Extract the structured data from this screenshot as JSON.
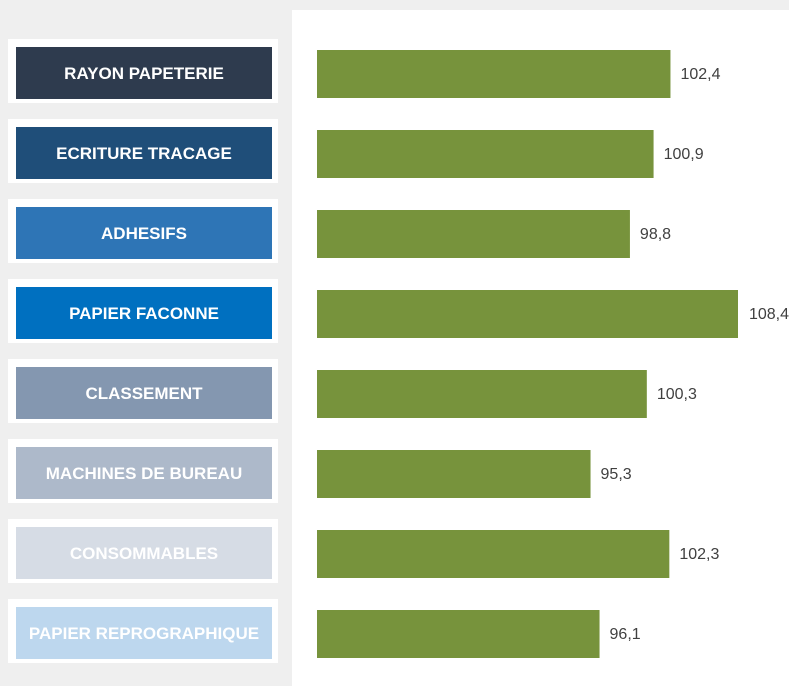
{
  "chart_data": {
    "type": "bar",
    "orientation": "horizontal",
    "categories": [
      "RAYON PAPETERIE",
      "ECRITURE TRACAGE",
      "ADHESIFS",
      "PAPIER FACONNE",
      "CLASSEMENT",
      "MACHINES DE BUREAU",
      "CONSOMMABLES",
      "PAPIER REPROGRAPHIQUE"
    ],
    "values": [
      102.4,
      100.9,
      98.8,
      108.4,
      100.3,
      95.3,
      102.3,
      96.1
    ],
    "value_labels": [
      "102,4",
      "100,9",
      "98,8",
      "108,4",
      "100,3",
      "95,3",
      "102,3",
      "96,1"
    ],
    "xlim": [
      71,
      108.4
    ],
    "bar_color": "#77933c",
    "category_colors": [
      "#2e3b4e",
      "#1f4e79",
      "#2e75b6",
      "#0070c0",
      "#8497b0",
      "#adb9ca",
      "#d6dce5",
      "#bdd7ee"
    ],
    "grid": false,
    "legend": "none"
  }
}
